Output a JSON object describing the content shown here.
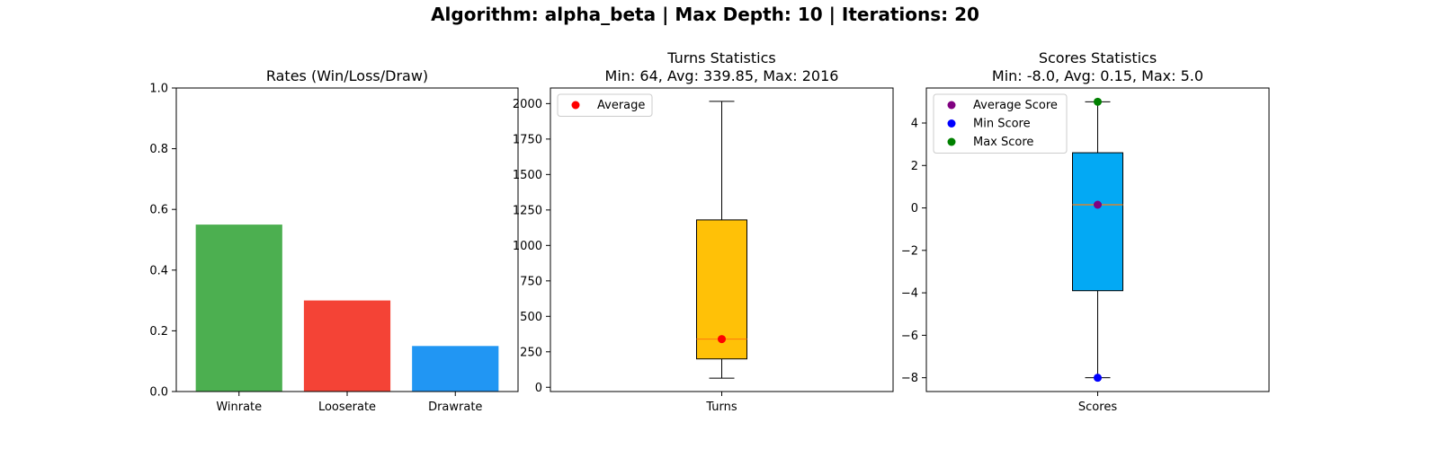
{
  "figure": {
    "title": "Algorithm: alpha_beta | Max Depth: 10 | Iterations: 20"
  },
  "chart_data": [
    {
      "type": "bar",
      "title": "Rates (Win/Loss/Draw)",
      "categories": [
        "Winrate",
        "Looserate",
        "Drawrate"
      ],
      "values": [
        0.55,
        0.3,
        0.15
      ],
      "colors": [
        "#4caf50",
        "#f44336",
        "#2196f3"
      ],
      "ylim": [
        0,
        1
      ],
      "yticks": [
        "0.0",
        "0.2",
        "0.4",
        "0.6",
        "0.8",
        "1.0"
      ],
      "grid": false
    },
    {
      "type": "box",
      "title_line1": "Turns Statistics",
      "title_line2": "Min: 64, Avg: 339.85, Max: 2016",
      "category": "Turns",
      "whisker_low": 64,
      "q1": 200,
      "median": 339.85,
      "q3": 1180,
      "whisker_high": 2016,
      "box_color": "#ffc107",
      "median_color": "#ff7f0e",
      "ylim": [
        -30,
        2110
      ],
      "yticks": [
        "0",
        "250",
        "500",
        "750",
        "1000",
        "1250",
        "1500",
        "1750",
        "2000"
      ],
      "points": [
        {
          "label": "Average",
          "value": 339.85,
          "color": "#ff0000"
        }
      ],
      "legend_location": "top-left",
      "grid": false
    },
    {
      "type": "box",
      "title_line1": "Scores Statistics",
      "title_line2": "Min: -8.0, Avg: 0.15, Max: 5.0",
      "category": "Scores",
      "whisker_low": -8.0,
      "q1": -3.9,
      "median": 0.15,
      "q3": 2.6,
      "whisker_high": 5.0,
      "box_color": "#03a9f4",
      "median_color": "#ff7f0e",
      "ylim": [
        -8.65,
        5.65
      ],
      "yticks": [
        "−8",
        "−6",
        "−4",
        "−2",
        "0",
        "2",
        "4"
      ],
      "points": [
        {
          "label": "Average Score",
          "value": 0.15,
          "color": "#800080"
        },
        {
          "label": "Min Score",
          "value": -8.0,
          "color": "#0000ff"
        },
        {
          "label": "Max Score",
          "value": 5.0,
          "color": "#008000"
        }
      ],
      "legend_location": "top-left",
      "grid": false
    }
  ]
}
